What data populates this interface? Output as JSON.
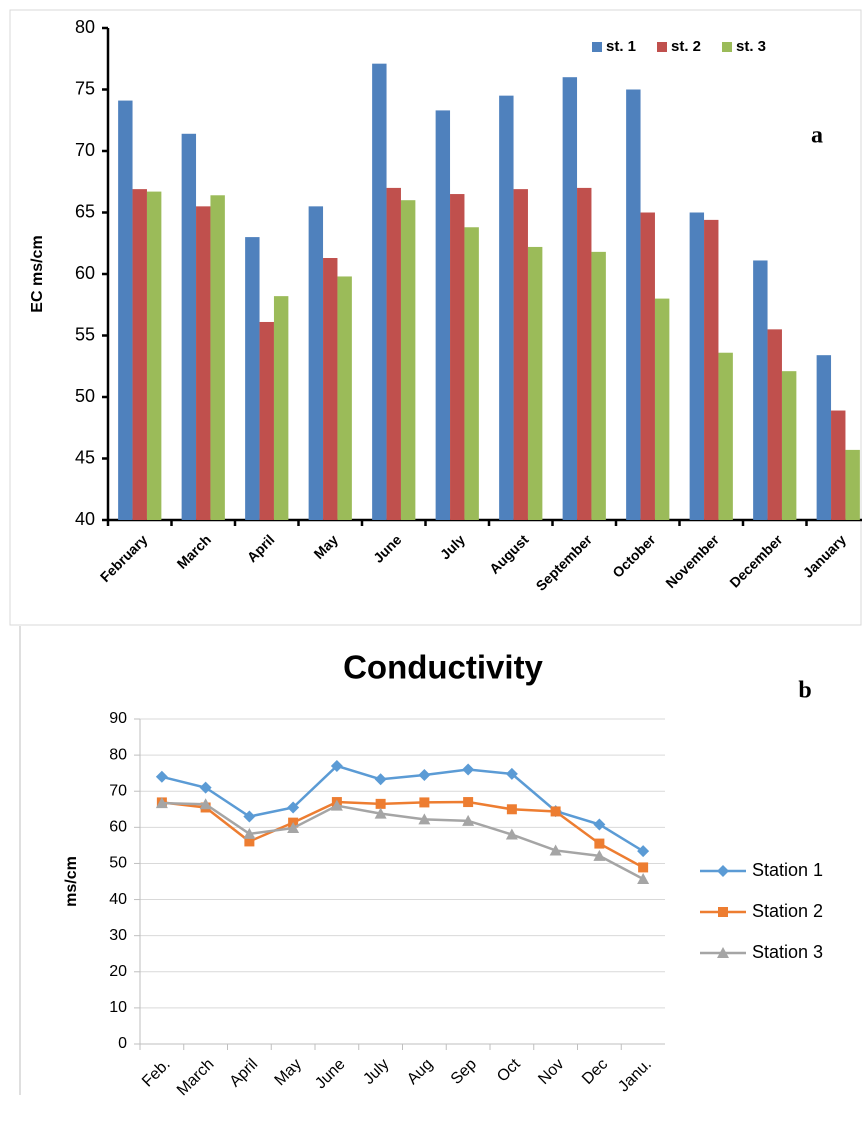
{
  "chart_data": [
    {
      "type": "bar",
      "y_label": "EC ms/cm",
      "annotation": "a",
      "categories": [
        "February",
        "March",
        "April",
        "May",
        "June",
        "July",
        "August",
        "September",
        "October",
        "November",
        "December",
        "January"
      ],
      "series": [
        {
          "name": "st. 1",
          "color": "#4f81bd",
          "values": [
            74.1,
            71.4,
            63,
            65.5,
            77.1,
            73.3,
            74.5,
            76,
            75,
            65,
            61.1,
            53.4
          ]
        },
        {
          "name": "st. 2",
          "color": "#c0504d",
          "values": [
            66.9,
            65.5,
            56.1,
            61.3,
            67,
            66.5,
            66.9,
            67,
            65,
            64.4,
            55.5,
            48.9
          ]
        },
        {
          "name": "st. 3",
          "color": "#9bbb59",
          "values": [
            66.7,
            66.4,
            58.2,
            59.8,
            66,
            63.8,
            62.2,
            61.8,
            58,
            53.6,
            52.1,
            45.7
          ]
        }
      ],
      "ylim": [
        40,
        80
      ],
      "yticks": [
        40,
        45,
        50,
        55,
        60,
        65,
        70,
        75,
        80
      ],
      "grid": false,
      "legend": "top-right"
    },
    {
      "type": "line",
      "title": "Conductivity",
      "y_label": "ms/cm",
      "annotation": "b",
      "categories": [
        "Feb.",
        "March",
        "April",
        "May",
        "June",
        "July",
        "Aug",
        "Sep",
        "Oct",
        "Nov",
        "Dec",
        "Janu."
      ],
      "series": [
        {
          "name": "Station 1",
          "color": "#5b9bd5",
          "marker": "diamond",
          "values": [
            74,
            71,
            63,
            65.5,
            77,
            73.3,
            74.5,
            76,
            74.8,
            64.5,
            60.8,
            53.4
          ]
        },
        {
          "name": "Station 2",
          "color": "#ed7d31",
          "marker": "square",
          "values": [
            66.9,
            65.5,
            56.1,
            61.3,
            67,
            66.5,
            66.9,
            67,
            65,
            64.4,
            55.5,
            48.9
          ]
        },
        {
          "name": "Station 3",
          "color": "#a5a5a5",
          "marker": "triangle",
          "values": [
            66.7,
            66.4,
            58.2,
            59.8,
            66,
            63.8,
            62.2,
            61.8,
            58,
            53.6,
            52.1,
            45.7
          ]
        }
      ],
      "ylim": [
        0,
        90
      ],
      "yticks": [
        0,
        10,
        20,
        30,
        40,
        50,
        60,
        70,
        80,
        90
      ],
      "grid": true,
      "legend": "right"
    }
  ]
}
